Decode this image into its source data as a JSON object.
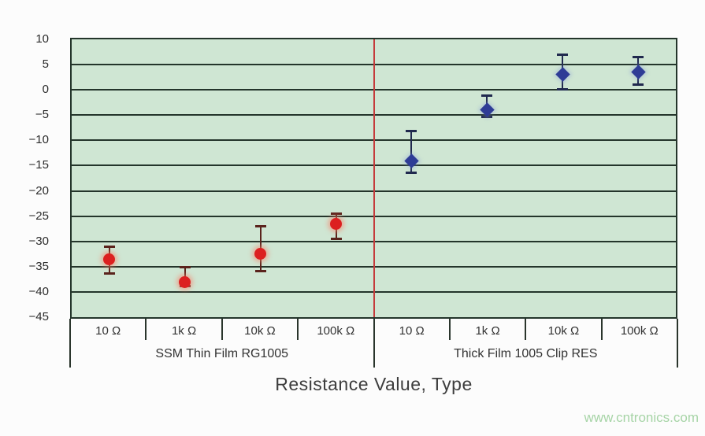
{
  "page": {
    "watermark": "www.cntronics.com"
  },
  "chart_data": {
    "type": "scatter",
    "title": "",
    "xlabel": "Resistance Value, Type",
    "ylabel": "",
    "ylim": [
      -45,
      10
    ],
    "yticks": [
      10,
      5,
      0,
      -5,
      -10,
      -15,
      -20,
      -25,
      -30,
      -35,
      -40,
      -45
    ],
    "grid": "horizontal",
    "legend_position": "none",
    "plot_bg_color": "#cfe6d3",
    "grid_color": "#24352b",
    "divider": {
      "after_slot": 4,
      "color": "#c53b3b"
    },
    "groups": [
      {
        "label": "SSM Thin Film RG1005",
        "categories": [
          "10 Ω",
          "1k Ω",
          "10k Ω",
          "100k Ω"
        ]
      },
      {
        "label": "Thick Film 1005 Clip RES",
        "categories": [
          "10 Ω",
          "1k Ω",
          "10k Ω",
          "100k Ω"
        ]
      }
    ],
    "series": [
      {
        "name": "SSM Thin Film RG1005",
        "marker": "circle",
        "color": "#dc2020",
        "error_color": "#5a231c",
        "points": [
          {
            "slot": 0,
            "category": "10 Ω",
            "y": -33.5,
            "err_hi": -31.0,
            "err_lo": -36.5
          },
          {
            "slot": 1,
            "category": "1k Ω",
            "y": -38.0,
            "err_hi": -35.0,
            "err_lo": -39.0
          },
          {
            "slot": 2,
            "category": "10k Ω",
            "y": -32.5,
            "err_hi": -27.0,
            "err_lo": -36.0
          },
          {
            "slot": 3,
            "category": "100k Ω",
            "y": -26.5,
            "err_hi": -24.5,
            "err_lo": -29.5
          }
        ]
      },
      {
        "name": "Thick Film 1005 Clip RES",
        "marker": "diamond",
        "color": "#2e3c96",
        "error_color": "#20294e",
        "points": [
          {
            "slot": 4,
            "category": "10 Ω",
            "y": -14.0,
            "err_hi": -8.0,
            "err_lo": -16.5
          },
          {
            "slot": 5,
            "category": "1k Ω",
            "y": -4.0,
            "err_hi": -1.0,
            "err_lo": -5.5
          },
          {
            "slot": 6,
            "category": "10k Ω",
            "y": 3.0,
            "err_hi": 7.0,
            "err_lo": 0.0
          },
          {
            "slot": 7,
            "category": "100k Ω",
            "y": 3.5,
            "err_hi": 6.5,
            "err_lo": 1.0
          }
        ]
      }
    ]
  }
}
